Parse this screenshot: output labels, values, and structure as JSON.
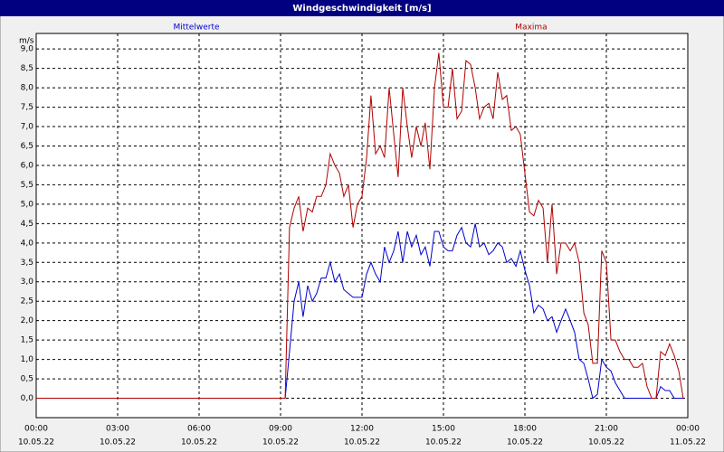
{
  "chart_data": {
    "type": "line",
    "title": "Windgeschwindigkeit [m/s]",
    "y_unit": "m/s",
    "xlim": [
      0,
      24
    ],
    "ylim": [
      -0.5,
      9.4
    ],
    "grid": true,
    "xticks": [
      {
        "value": 0,
        "label": "00:00"
      },
      {
        "value": 3,
        "label": "03:00"
      },
      {
        "value": 6,
        "label": "06:00"
      },
      {
        "value": 9,
        "label": "09:00"
      },
      {
        "value": 12,
        "label": "12:00"
      },
      {
        "value": 15,
        "label": "15:00"
      },
      {
        "value": 18,
        "label": "18:00"
      },
      {
        "value": 21,
        "label": "21:00"
      },
      {
        "value": 24,
        "label": "00:00"
      }
    ],
    "xtick_dates": [
      "10.05.22",
      "10.05.22",
      "10.05.22",
      "10.05.22",
      "10.05.22",
      "10.05.22",
      "10.05.22",
      "10.05.22",
      "11.05.22"
    ],
    "yticks": [
      {
        "value": 0,
        "label": "0,0"
      },
      {
        "value": 0.5,
        "label": "0,5"
      },
      {
        "value": 1,
        "label": "1,0"
      },
      {
        "value": 1.5,
        "label": "1,5"
      },
      {
        "value": 2,
        "label": "2,0"
      },
      {
        "value": 2.5,
        "label": "2,5"
      },
      {
        "value": 3,
        "label": "3,0"
      },
      {
        "value": 3.5,
        "label": "3,5"
      },
      {
        "value": 4,
        "label": "4,0"
      },
      {
        "value": 4.5,
        "label": "4,5"
      },
      {
        "value": 5,
        "label": "5,0"
      },
      {
        "value": 5.5,
        "label": "5,5"
      },
      {
        "value": 6,
        "label": "6,0"
      },
      {
        "value": 6.5,
        "label": "6,5"
      },
      {
        "value": 7,
        "label": "7,0"
      },
      {
        "value": 7.5,
        "label": "7,5"
      },
      {
        "value": 8,
        "label": "8,0"
      },
      {
        "value": 8.5,
        "label": "8,5"
      },
      {
        "value": 9,
        "label": "9,0"
      }
    ],
    "x": [
      0,
      9.17,
      9.33,
      9.5,
      9.67,
      9.83,
      10,
      10.17,
      10.33,
      10.5,
      10.67,
      10.83,
      11,
      11.17,
      11.33,
      11.5,
      11.67,
      11.83,
      12,
      12.17,
      12.33,
      12.5,
      12.67,
      12.83,
      13,
      13.17,
      13.33,
      13.5,
      13.67,
      13.83,
      14,
      14.17,
      14.33,
      14.5,
      14.67,
      14.83,
      15,
      15.17,
      15.33,
      15.5,
      15.67,
      15.83,
      16,
      16.17,
      16.33,
      16.5,
      16.67,
      16.83,
      17,
      17.17,
      17.33,
      17.5,
      17.67,
      17.83,
      18,
      18.17,
      18.33,
      18.5,
      18.67,
      18.83,
      19,
      19.17,
      19.33,
      19.5,
      19.67,
      19.83,
      20,
      20.17,
      20.33,
      20.5,
      20.67,
      20.83,
      21,
      21.17,
      21.33,
      21.5,
      21.67,
      21.83,
      22,
      22.17,
      22.33,
      22.5,
      22.67,
      22.83,
      23,
      23.17,
      23.33,
      23.5,
      23.67,
      23.83
    ],
    "series": [
      {
        "name": "Mittelwerte",
        "color": "#0000cc",
        "values": [
          0,
          0,
          1.2,
          2.5,
          3.0,
          2.1,
          2.9,
          2.5,
          2.7,
          3.1,
          3.1,
          3.5,
          3.0,
          3.2,
          2.8,
          2.7,
          2.6,
          2.6,
          2.6,
          3.2,
          3.5,
          3.2,
          3.0,
          3.9,
          3.5,
          3.8,
          4.3,
          3.5,
          4.3,
          3.9,
          4.2,
          3.7,
          3.9,
          3.4,
          4.3,
          4.3,
          3.9,
          3.8,
          3.8,
          4.2,
          4.4,
          4.0,
          3.9,
          4.5,
          3.9,
          4.0,
          3.7,
          3.8,
          4.0,
          3.9,
          3.5,
          3.6,
          3.4,
          3.8,
          3.3,
          2.9,
          2.2,
          2.4,
          2.3,
          2.0,
          2.1,
          1.7,
          2.0,
          2.3,
          2.0,
          1.7,
          1.0,
          0.9,
          0.5,
          0.0,
          0.1,
          1.0,
          0.8,
          0.7,
          0.4,
          0.2,
          0.0,
          0.0,
          0.0,
          0.0,
          0.0,
          0.0,
          0.0,
          0.0,
          0.3,
          0.2,
          0.2,
          0.0,
          0.0,
          0.0
        ]
      },
      {
        "name": "Maxima",
        "color": "#b00000",
        "values": [
          0,
          0,
          4.4,
          4.9,
          5.2,
          4.3,
          4.9,
          4.8,
          5.2,
          5.2,
          5.5,
          6.3,
          6.0,
          5.8,
          5.2,
          5.5,
          4.4,
          5.0,
          5.2,
          6.2,
          7.8,
          6.3,
          6.5,
          6.2,
          8.0,
          6.8,
          5.7,
          8.0,
          7.0,
          6.2,
          7.0,
          6.5,
          7.1,
          5.9,
          8.0,
          8.9,
          7.5,
          7.5,
          8.5,
          7.2,
          7.4,
          8.7,
          8.6,
          8.0,
          7.2,
          7.5,
          7.6,
          7.2,
          8.4,
          7.7,
          7.8,
          6.9,
          7.0,
          6.8,
          5.8,
          4.8,
          4.7,
          5.1,
          4.9,
          3.5,
          5.0,
          3.2,
          4.0,
          4.0,
          3.8,
          4.0,
          3.5,
          2.2,
          1.9,
          0.9,
          0.9,
          3.8,
          3.5,
          1.5,
          1.5,
          1.2,
          1.0,
          1.0,
          0.8,
          0.8,
          0.9,
          0.3,
          0.0,
          0.0,
          1.2,
          1.1,
          1.4,
          1.1,
          0.7,
          0.0
        ]
      }
    ]
  }
}
